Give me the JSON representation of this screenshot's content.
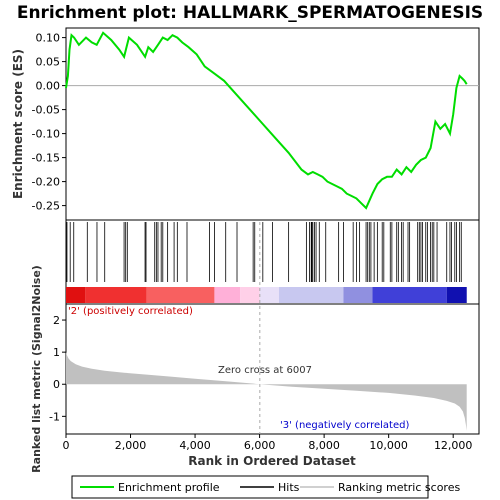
{
  "chart_data": {
    "type": "line",
    "title": "Enrichment plot: HALLMARK_SPERMATOGENESIS",
    "es_panel": {
      "ylabel": "Enrichment score (ES)",
      "ylim": [
        -0.28,
        0.12
      ],
      "yticks": [
        0.1,
        0.05,
        0.0,
        -0.05,
        -0.1,
        -0.15,
        -0.2,
        -0.25
      ],
      "ytick_labels": [
        "0.10",
        "0.05",
        "0.00",
        "-0.05",
        "-0.10",
        "-0.15",
        "-0.20",
        "-0.25"
      ],
      "series_name": "Enrichment profile",
      "color": "#00dd00",
      "profile_x": [
        0,
        60,
        110,
        170,
        250,
        400,
        620,
        800,
        950,
        1150,
        1400,
        1650,
        1800,
        1950,
        2200,
        2450,
        2550,
        2700,
        2850,
        3000,
        3150,
        3300,
        3450,
        3600,
        3800,
        4050,
        4300,
        4600,
        4900,
        5300,
        5700,
        6100,
        6500,
        6900,
        7300,
        7500,
        7650,
        7800,
        7950,
        8100,
        8250,
        8400,
        8550,
        8700,
        8850,
        9000,
        9150,
        9300,
        9400,
        9500,
        9650,
        9800,
        9950,
        10100,
        10250,
        10400,
        10550,
        10700,
        10850,
        11000,
        11150,
        11300,
        11450,
        11600,
        11750,
        11900,
        12000,
        12100,
        12200,
        12280,
        12350,
        12420
      ],
      "profile_y": [
        -0.005,
        0.02,
        0.075,
        0.105,
        0.1,
        0.085,
        0.1,
        0.09,
        0.085,
        0.11,
        0.095,
        0.075,
        0.06,
        0.1,
        0.085,
        0.06,
        0.08,
        0.07,
        0.085,
        0.1,
        0.095,
        0.105,
        0.1,
        0.09,
        0.08,
        0.065,
        0.04,
        0.025,
        0.01,
        -0.02,
        -0.05,
        -0.08,
        -0.11,
        -0.14,
        -0.175,
        -0.185,
        -0.18,
        -0.185,
        -0.19,
        -0.2,
        -0.205,
        -0.21,
        -0.215,
        -0.225,
        -0.23,
        -0.235,
        -0.245,
        -0.255,
        -0.24,
        -0.225,
        -0.205,
        -0.195,
        -0.19,
        -0.19,
        -0.175,
        -0.185,
        -0.17,
        -0.18,
        -0.165,
        -0.155,
        -0.15,
        -0.13,
        -0.075,
        -0.09,
        -0.08,
        -0.1,
        -0.06,
        -0.005,
        0.02,
        0.015,
        0.01,
        0.003
      ]
    },
    "hits_panel": {
      "series_name": "Hits",
      "hit_positions": [
        30,
        130,
        240,
        660,
        960,
        1200,
        1800,
        1850,
        1900,
        2450,
        2480,
        2750,
        2800,
        2850,
        2950,
        3000,
        3150,
        3350,
        3450,
        3750,
        4450,
        4600,
        4950,
        5300,
        5800,
        5850,
        6100,
        6400,
        6900,
        7450,
        7550,
        7600,
        7620,
        7650,
        7700,
        7750,
        7850,
        8050,
        8450,
        8600,
        8900,
        9000,
        9100,
        9300,
        9350,
        9400,
        9450,
        9550,
        9650,
        9800,
        9850,
        10050,
        10100,
        10250,
        10300,
        10400,
        10450,
        10600,
        10650,
        10900,
        10950,
        11000,
        11050,
        11150,
        11200,
        11300,
        11350,
        11400,
        11500,
        11800,
        11900,
        11950,
        12050,
        12100,
        12200,
        12250
      ],
      "colorbar": [
        {
          "from": 0,
          "to": 600,
          "color": "#e01010"
        },
        {
          "from": 600,
          "to": 2500,
          "color": "#f03030"
        },
        {
          "from": 2500,
          "to": 4600,
          "color": "#f86060"
        },
        {
          "from": 4600,
          "to": 5400,
          "color": "#ffb0d8"
        },
        {
          "from": 5400,
          "to": 6000,
          "color": "#ffd0e8"
        },
        {
          "from": 6000,
          "to": 6600,
          "color": "#e8e0f8"
        },
        {
          "from": 6600,
          "to": 8600,
          "color": "#c8c8f0"
        },
        {
          "from": 8600,
          "to": 9500,
          "color": "#9090e0"
        },
        {
          "from": 9500,
          "to": 11800,
          "color": "#4040d8"
        },
        {
          "from": 11800,
          "to": 12420,
          "color": "#1010b0"
        }
      ],
      "label_positive": "'2' (positively correlated)",
      "label_negative": "'3' (negatively correlated)",
      "label_positive_color": "#cc0000",
      "label_negative_color": "#0000cc"
    },
    "metric_panel": {
      "ylabel": "Ranked list metric (Signal2Noise)",
      "xlabel": "Rank in Ordered Dataset",
      "series_name": "Ranking metric scores",
      "color": "#c0c0c0",
      "ylim": [
        -1.55,
        2.5
      ],
      "yticks": [
        2,
        1,
        0,
        -1
      ],
      "ytick_labels": [
        "2",
        "1",
        "0",
        "-1"
      ],
      "xlim": [
        0,
        12800
      ],
      "xticks": [
        0,
        2000,
        4000,
        6000,
        8000,
        10000,
        12000
      ],
      "xtick_labels": [
        "0",
        "2,000",
        "4,000",
        "6,000",
        "8,000",
        "10,000",
        "12,000"
      ],
      "zero_cross": 6007,
      "zero_cross_label": "Zero cross at 6007",
      "metric_x": [
        0,
        30,
        80,
        150,
        300,
        500,
        800,
        1200,
        1800,
        2500,
        3200,
        4000,
        5000,
        6007,
        7000,
        8000,
        9000,
        10000,
        10800,
        11400,
        11800,
        12050,
        12200,
        12300,
        12360,
        12400,
        12420
      ],
      "metric_y": [
        1.0,
        0.9,
        0.8,
        0.72,
        0.62,
        0.55,
        0.48,
        0.42,
        0.36,
        0.3,
        0.24,
        0.17,
        0.09,
        0.0,
        -0.08,
        -0.14,
        -0.2,
        -0.27,
        -0.35,
        -0.43,
        -0.52,
        -0.6,
        -0.7,
        -0.85,
        -1.05,
        -1.3,
        -1.45
      ]
    },
    "legend": {
      "placement": "bottom",
      "entries": [
        {
          "label": "Enrichment profile",
          "color": "#00dd00"
        },
        {
          "label": "Hits",
          "color": "#000000"
        },
        {
          "label": "Ranking metric scores",
          "color": "#c0c0c0"
        }
      ]
    }
  }
}
